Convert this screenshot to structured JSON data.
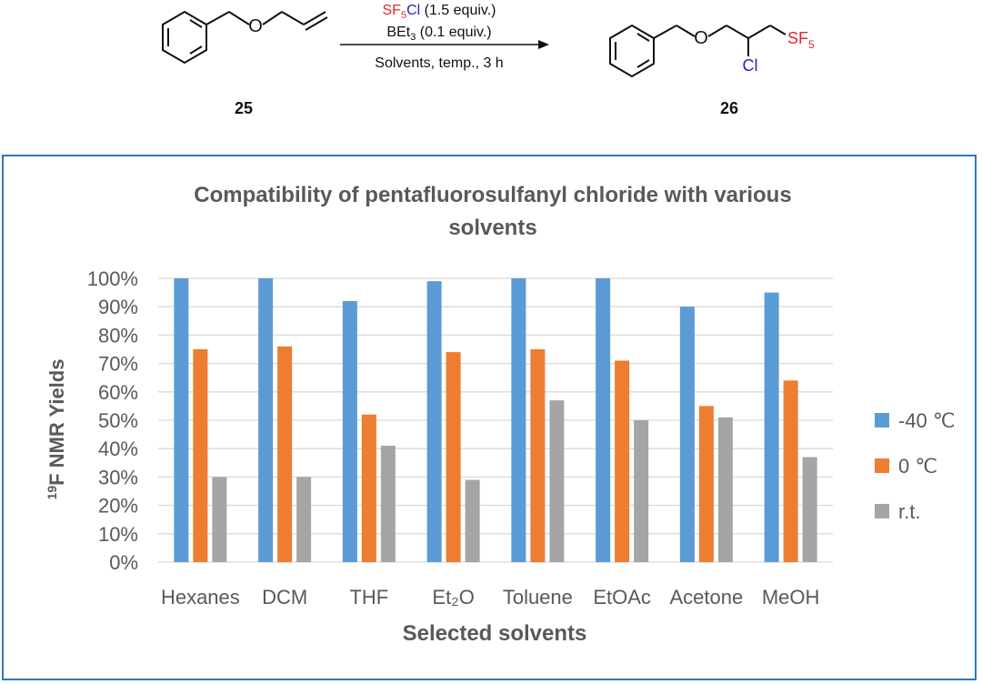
{
  "scheme": {
    "reactant_id": "25",
    "product_id": "26",
    "reagent1_sf": "SF",
    "reagent1_sf_sub": "5",
    "reagent1_cl": "Cl",
    "reagent1_amount": " (1.5 equiv.)",
    "reagent2_b": "BEt",
    "reagent2_sub": "3",
    "reagent2_amount": " (0.1 equiv.)",
    "conditions": "Solvents, temp., 3 h",
    "atom_o": "O",
    "atom_cl": "Cl",
    "product_sf": "SF",
    "product_sf_sub": "5",
    "colors": {
      "sf": "#e8262a",
      "cl": "#2424c8",
      "text": "#111111"
    }
  },
  "chart_data": {
    "type": "bar",
    "title_line1": "Compatibility of pentafluorosulfanyl chloride with various",
    "title_line2": "solvents",
    "ylabel_sup": "19",
    "ylabel_rest": "F NMR Yields",
    "xlabel": "Selected solvents",
    "categories": [
      "Hexanes",
      "DCM",
      "THF",
      "Et₂O",
      "Toluene",
      "EtOAc",
      "Acetone",
      "MeOH"
    ],
    "yticks": [
      "0%",
      "10%",
      "20%",
      "30%",
      "40%",
      "50%",
      "60%",
      "70%",
      "80%",
      "90%",
      "100%"
    ],
    "ylim": [
      0,
      100
    ],
    "series": [
      {
        "name": "-40 ℃",
        "color": "#5b9bd5",
        "values": [
          100,
          100,
          92,
          99,
          100,
          100,
          90,
          95
        ]
      },
      {
        "name": "0 ℃",
        "color": "#ed7d31",
        "values": [
          75,
          76,
          52,
          74,
          75,
          71,
          55,
          64
        ]
      },
      {
        "name": "r.t.",
        "color": "#a5a5a5",
        "values": [
          30,
          30,
          41,
          29,
          57,
          50,
          51,
          37
        ]
      }
    ],
    "legend_position": "right",
    "grid": true
  }
}
